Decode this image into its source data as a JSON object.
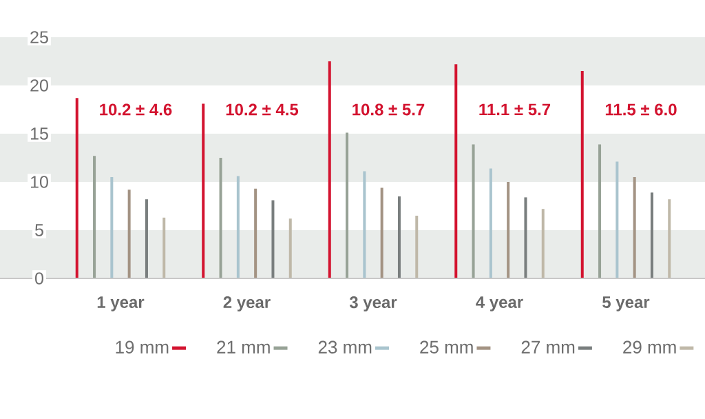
{
  "chart_data": {
    "type": "bar",
    "categories": [
      "1 year",
      "2 year",
      "3 year",
      "4 year",
      "5 year"
    ],
    "series": [
      {
        "name": "19 mm",
        "color": "#d3132f",
        "values": [
          18.7,
          18.1,
          22.5,
          22.2,
          21.5
        ]
      },
      {
        "name": "21 mm",
        "color": "#97a296",
        "values": [
          12.7,
          12.5,
          15.1,
          13.9,
          13.9
        ]
      },
      {
        "name": "23 mm",
        "color": "#a9c4ce",
        "values": [
          10.5,
          10.6,
          11.1,
          11.4,
          12.1
        ]
      },
      {
        "name": "25 mm",
        "color": "#a39383",
        "values": [
          9.2,
          9.3,
          9.4,
          10.0,
          10.5
        ]
      },
      {
        "name": "27 mm",
        "color": "#797e7e",
        "values": [
          8.2,
          8.1,
          8.5,
          8.4,
          8.9
        ]
      },
      {
        "name": "29 mm",
        "color": "#bfb8a8",
        "values": [
          6.3,
          6.2,
          6.5,
          7.2,
          8.2
        ]
      }
    ],
    "ylim": [
      0,
      25
    ],
    "yticks": [
      0,
      5,
      10,
      15,
      20,
      25
    ],
    "legend": "bottom",
    "bands": [
      {
        "axis": "y",
        "from": 0,
        "to": 5,
        "color": "#e9ecea"
      },
      {
        "axis": "y",
        "from": 10,
        "to": 15,
        "color": "#e9ecea"
      },
      {
        "axis": "y",
        "from": 20,
        "to": 25,
        "color": "#e9ecea"
      }
    ],
    "annotations": [
      "10.2 ± 4.6",
      "10.2 ± 4.5",
      "10.8 ± 5.7",
      "11.1 ± 5.7",
      "11.5 ± 6.0"
    ]
  }
}
